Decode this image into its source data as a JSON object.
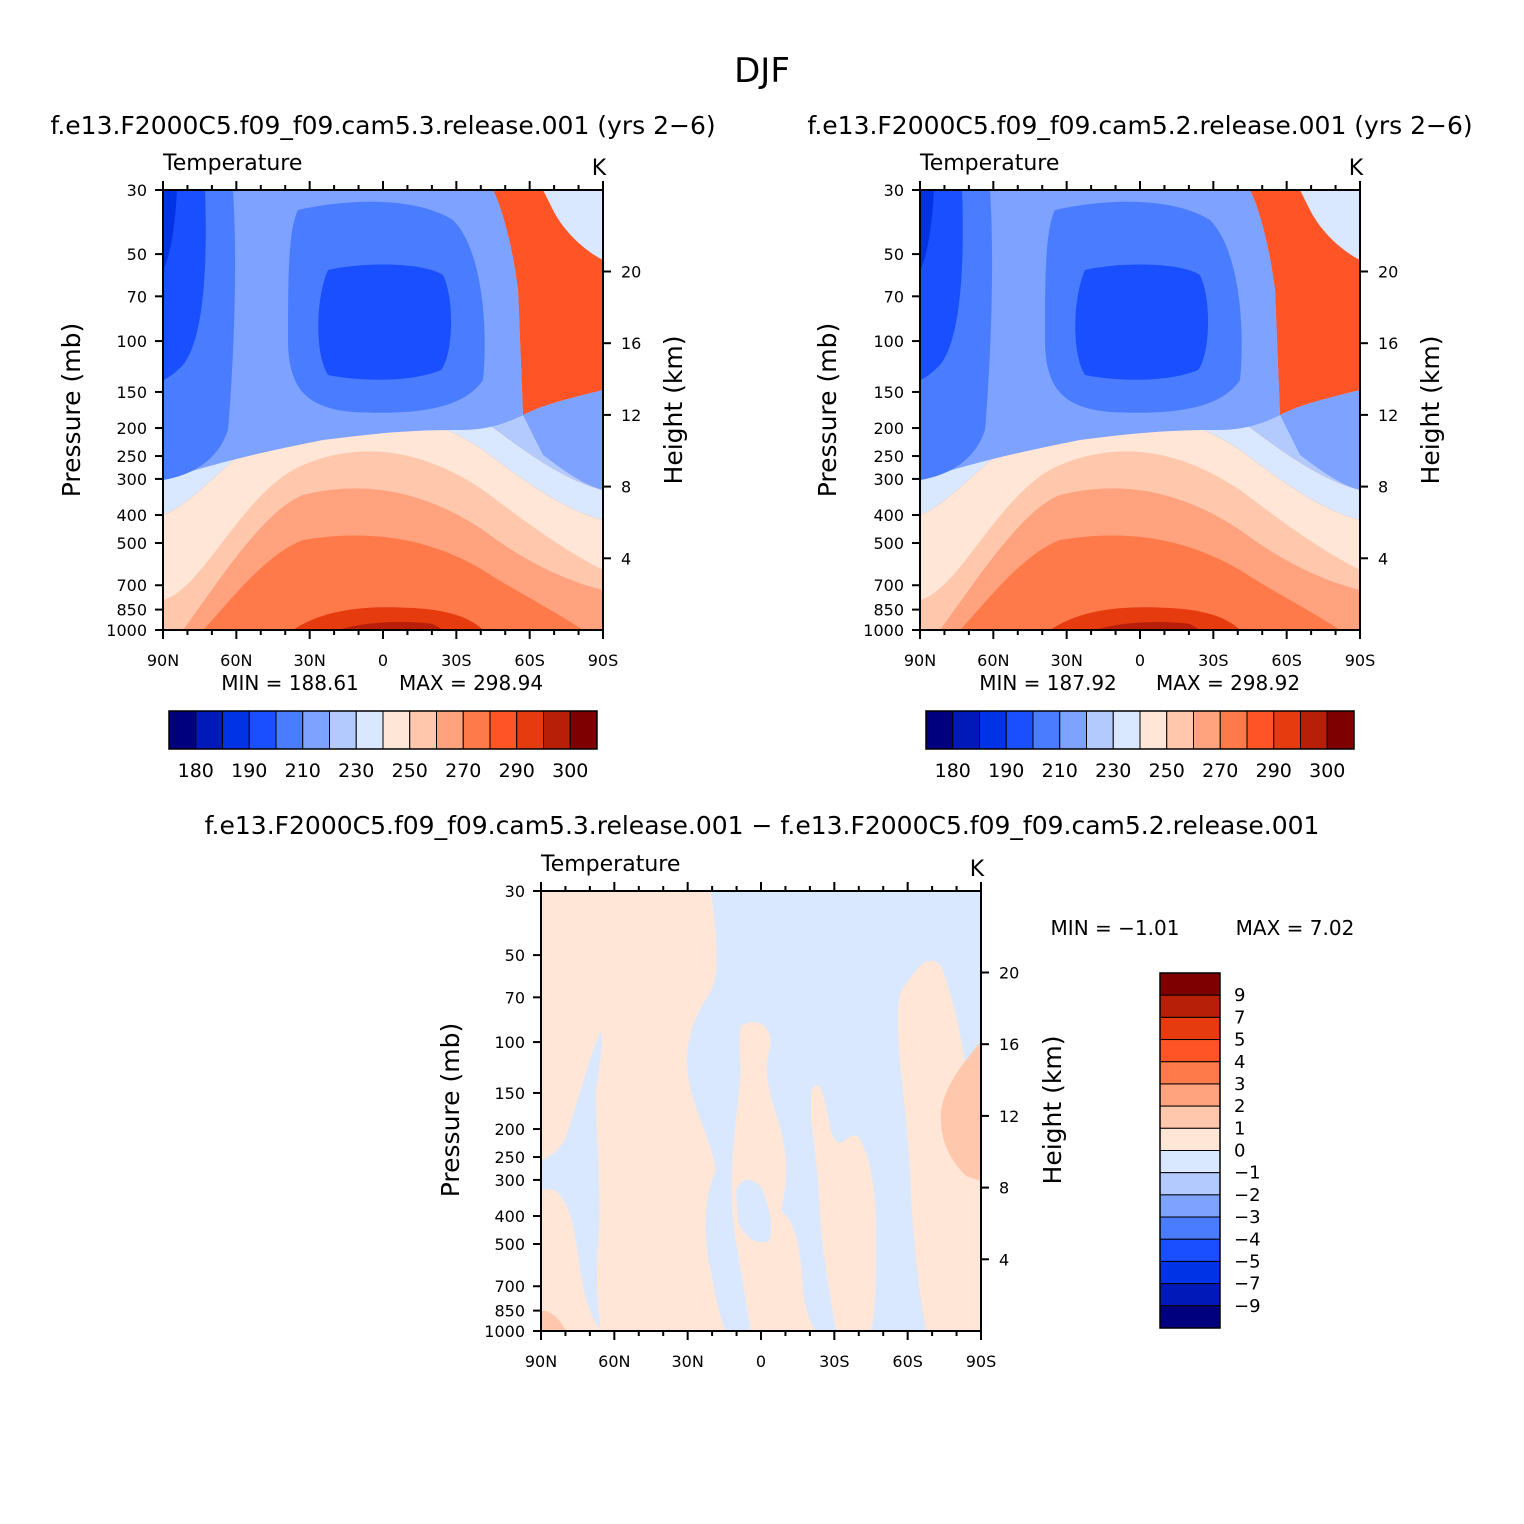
{
  "figure": {
    "title": "DJF"
  },
  "colors": {
    "abs_palette": [
      "#00007f",
      "#0019b8",
      "#0033e6",
      "#1a4fff",
      "#4a7cff",
      "#7ea2ff",
      "#b3caff",
      "#d9e8ff",
      "#ffe6d6",
      "#ffc8ad",
      "#ffa27d",
      "#ff7a4a",
      "#ff5526",
      "#e63a0f",
      "#b81f08",
      "#7f0000"
    ],
    "diff_palette": [
      "#00007f",
      "#0019b8",
      "#0033e6",
      "#1a4fff",
      "#4a7cff",
      "#7ea2ff",
      "#b3caff",
      "#d9e8ff",
      "#ffe6d6",
      "#ffc8ad",
      "#ffa27d",
      "#ff7a4a",
      "#ff5526",
      "#e63a0f",
      "#b81f08",
      "#7f0000"
    ]
  },
  "chart_data": [
    {
      "type": "heatmap",
      "title": "f.e13.F2000C5.f09_f09.cam5.3.release.001  (yrs  2−6)",
      "variable": "Temperature",
      "units": "K",
      "ylabel": "Pressure  (mb)",
      "y2label": "Height  (km)",
      "x_ticks": [
        "90N",
        "60N",
        "30N",
        "0",
        "30S",
        "60S",
        "90S"
      ],
      "y_ticks": [
        "30",
        "50",
        "70",
        "100",
        "150",
        "200",
        "250",
        "300",
        "400",
        "500",
        "700",
        "850",
        "1000"
      ],
      "y2_ticks": [
        "20",
        "16",
        "12",
        "8",
        "4"
      ],
      "min_label": "MIN  =  188.61",
      "max_label": "MAX  =  298.94",
      "min": 188.61,
      "max": 298.94,
      "colorbar_labels": [
        "180",
        "190",
        "210",
        "230",
        "250",
        "270",
        "290",
        "300"
      ]
    },
    {
      "type": "heatmap",
      "title": "f.e13.F2000C5.f09_f09.cam5.2.release.001  (yrs  2−6)",
      "variable": "Temperature",
      "units": "K",
      "ylabel": "Pressure  (mb)",
      "y2label": "Height  (km)",
      "x_ticks": [
        "90N",
        "60N",
        "30N",
        "0",
        "30S",
        "60S",
        "90S"
      ],
      "y_ticks": [
        "30",
        "50",
        "70",
        "100",
        "150",
        "200",
        "250",
        "300",
        "400",
        "500",
        "700",
        "850",
        "1000"
      ],
      "y2_ticks": [
        "20",
        "16",
        "12",
        "8",
        "4"
      ],
      "min_label": "MIN  =  187.92",
      "max_label": "MAX  =  298.92",
      "min": 187.92,
      "max": 298.92,
      "colorbar_labels": [
        "180",
        "190",
        "210",
        "230",
        "250",
        "270",
        "290",
        "300"
      ]
    },
    {
      "type": "heatmap",
      "title": "f.e13.F2000C5.f09_f09.cam5.3.release.001  −  f.e13.F2000C5.f09_f09.cam5.2.release.001",
      "variable": "Temperature",
      "units": "K",
      "ylabel": "Pressure  (mb)",
      "y2label": "Height  (km)",
      "x_ticks": [
        "90N",
        "60N",
        "30N",
        "0",
        "30S",
        "60S",
        "90S"
      ],
      "y_ticks": [
        "30",
        "50",
        "70",
        "100",
        "150",
        "200",
        "250",
        "300",
        "400",
        "500",
        "700",
        "850",
        "1000"
      ],
      "y2_ticks": [
        "20",
        "16",
        "12",
        "8",
        "4"
      ],
      "min_label": "MIN  =    −1.01",
      "max_label": "MAX  =     7.02",
      "min": -1.01,
      "max": 7.02,
      "colorbar_labels": [
        "9",
        "7",
        "5",
        "4",
        "3",
        "2",
        "1",
        "0",
        "−1",
        "−2",
        "−3",
        "−4",
        "−5",
        "−7",
        "−9"
      ]
    }
  ]
}
